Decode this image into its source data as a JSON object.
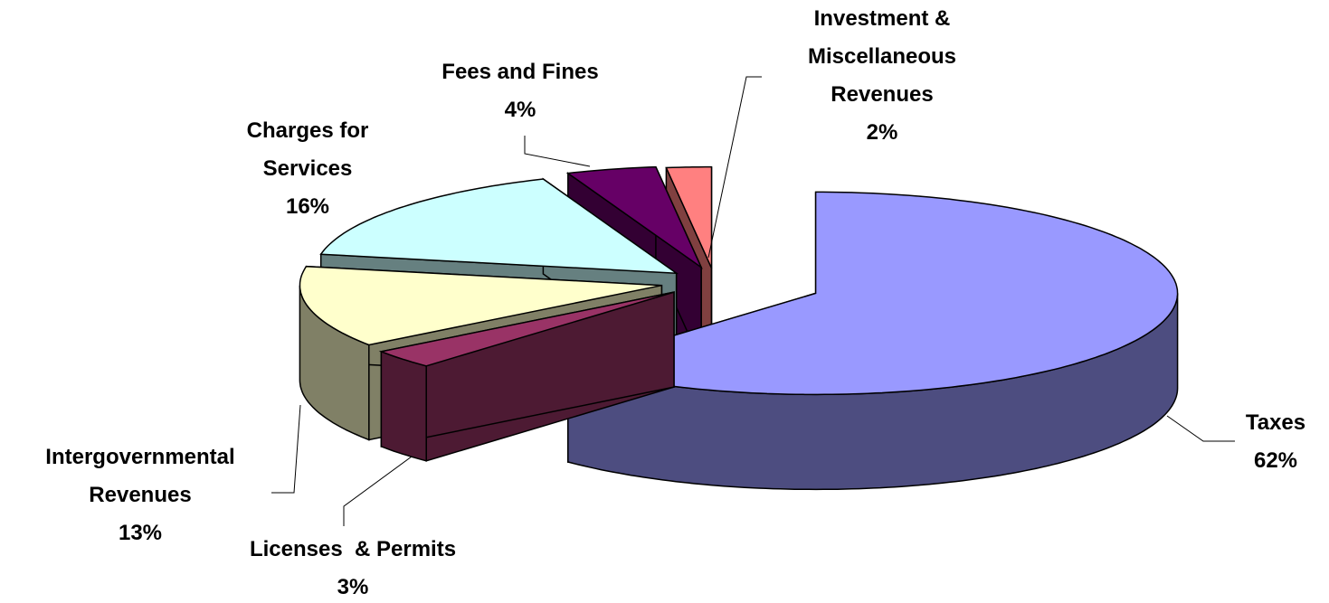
{
  "chart_data": {
    "type": "pie",
    "categories": [
      "Taxes",
      "Licenses  & Permits",
      "Intergovernmental Revenues",
      "Charges for Services",
      "Fees and Fines",
      "Investment & Miscellaneous Revenues"
    ],
    "values": [
      62,
      3,
      13,
      16,
      4,
      2
    ],
    "value_labels": [
      "62%",
      "3%",
      "13%",
      "16%",
      "4%",
      "2%"
    ],
    "colors": [
      "#9999ff",
      "#993366",
      "#ffffcc",
      "#ccffff",
      "#660066",
      "#ff8080"
    ]
  }
}
